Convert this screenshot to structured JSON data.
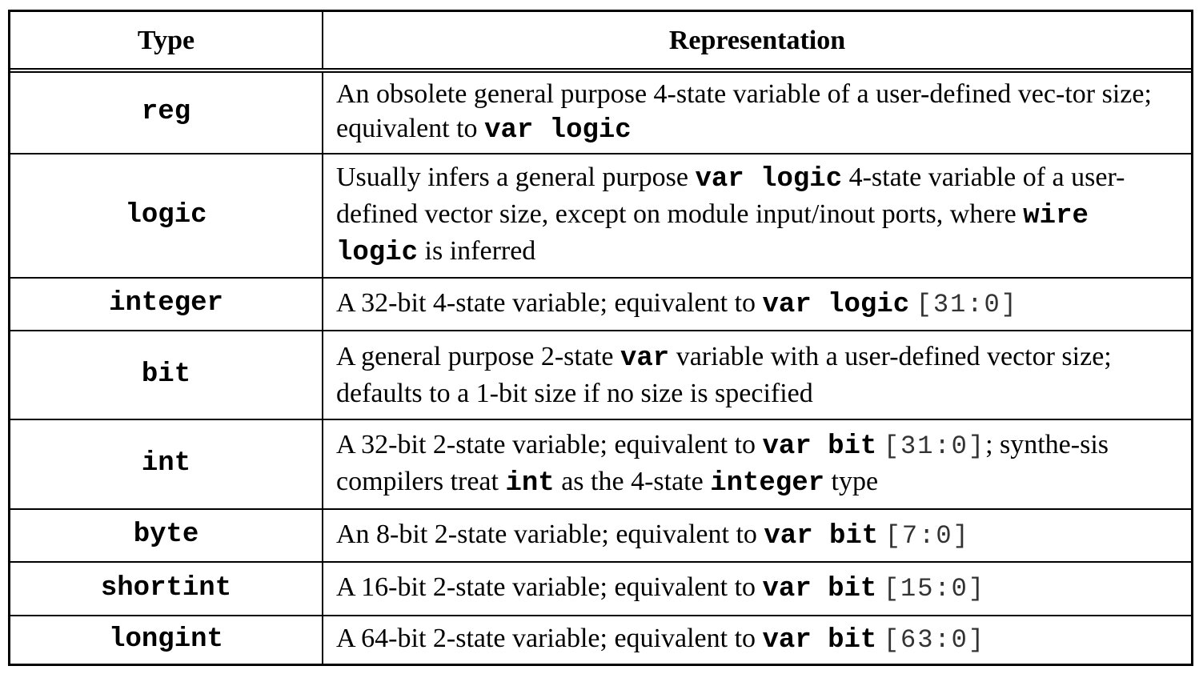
{
  "header": {
    "type": "Type",
    "representation": "Representation"
  },
  "rows": [
    {
      "type": "reg",
      "description": [
        {
          "t": "An obsolete general purpose 4-state variable of a user-defined vec-tor size; equivalent to "
        },
        {
          "t": "var logic",
          "kw": true
        }
      ]
    },
    {
      "type": "logic",
      "description": [
        {
          "t": "Usually infers a general purpose "
        },
        {
          "t": "var logic",
          "kw": true
        },
        {
          "t": " 4-state variable of a user-defined vector size, except on module input/inout ports, where "
        },
        {
          "t": "wire logic",
          "kw": true
        },
        {
          "t": " is inferred"
        }
      ]
    },
    {
      "type": "integer",
      "description": [
        {
          "t": "A 32-bit 4-state variable; equivalent to "
        },
        {
          "t": "var logic",
          "kw": true
        },
        {
          "t": " "
        },
        {
          "t": "[31:0]",
          "rng": true
        }
      ]
    },
    {
      "type": "bit",
      "description": [
        {
          "t": "A general purpose 2-state "
        },
        {
          "t": "var",
          "kw": true
        },
        {
          "t": " variable with a user-defined vector size; defaults to a 1-bit size if no size is specified"
        }
      ]
    },
    {
      "type": "int",
      "description": [
        {
          "t": "A 32-bit 2-state variable; equivalent to "
        },
        {
          "t": "var bit",
          "kw": true
        },
        {
          "t": " "
        },
        {
          "t": "[31:0]",
          "rng": true
        },
        {
          "t": "; synthe-sis compilers treat "
        },
        {
          "t": "int",
          "kw": true
        },
        {
          "t": " as the 4-state "
        },
        {
          "t": "integer",
          "kw": true
        },
        {
          "t": " type"
        }
      ]
    },
    {
      "type": "byte",
      "description": [
        {
          "t": "An 8-bit 2-state variable; equivalent to "
        },
        {
          "t": "var bit",
          "kw": true
        },
        {
          "t": " "
        },
        {
          "t": "[7:0]",
          "rng": true
        }
      ]
    },
    {
      "type": "shortint",
      "description": [
        {
          "t": "A 16-bit 2-state variable; equivalent to "
        },
        {
          "t": "var bit",
          "kw": true
        },
        {
          "t": " "
        },
        {
          "t": "[15:0]",
          "rng": true
        }
      ]
    },
    {
      "type": "longint",
      "description": [
        {
          "t": "A 64-bit 2-state variable; equivalent to "
        },
        {
          "t": "var bit",
          "kw": true
        },
        {
          "t": " "
        },
        {
          "t": "[63:0]",
          "rng": true
        }
      ]
    }
  ]
}
